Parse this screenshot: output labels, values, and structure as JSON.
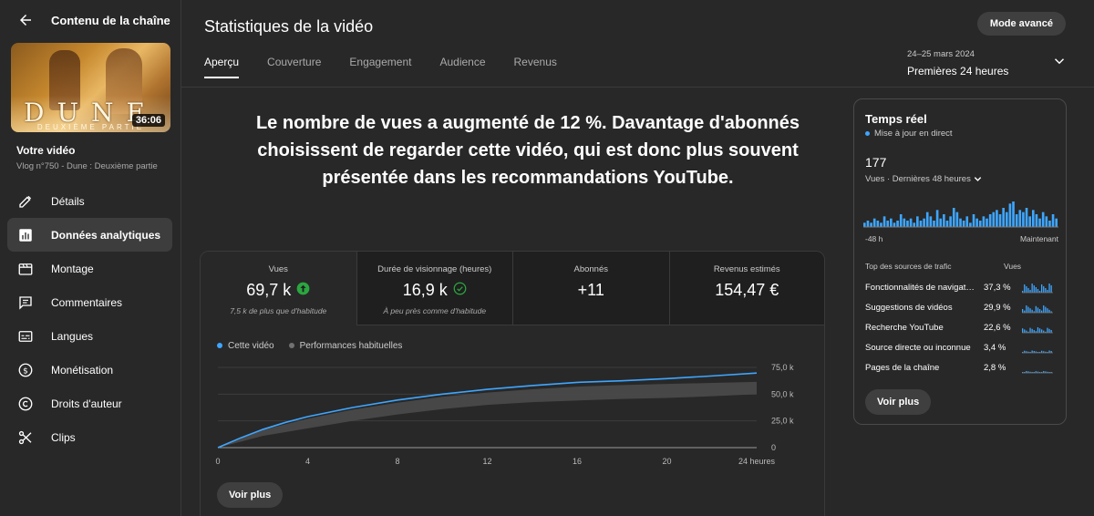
{
  "sidebar": {
    "title": "Contenu de la chaîne",
    "video_duration": "36:06",
    "thumbnail_text": {
      "title": "DUNE",
      "subtitle": "DEUXIÈME PARTIE"
    },
    "video_label": "Votre vidéo",
    "video_subtitle": "Vlog n°750 - Dune : Deuxième partie",
    "items": [
      {
        "label": "Détails",
        "icon": "pencil-icon",
        "active": false
      },
      {
        "label": "Données analytiques",
        "icon": "analytics-icon",
        "active": true
      },
      {
        "label": "Montage",
        "icon": "clapperboard-icon",
        "active": false
      },
      {
        "label": "Commentaires",
        "icon": "comment-icon",
        "active": false
      },
      {
        "label": "Langues",
        "icon": "subtitles-icon",
        "active": false
      },
      {
        "label": "Monétisation",
        "icon": "dollar-icon",
        "active": false
      },
      {
        "label": "Droits d'auteur",
        "icon": "copyright-icon",
        "active": false
      },
      {
        "label": "Clips",
        "icon": "scissors-icon",
        "active": false
      }
    ]
  },
  "header": {
    "title": "Statistiques de la vidéo",
    "advanced_button": "Mode avancé",
    "tabs": [
      "Aperçu",
      "Couverture",
      "Engagement",
      "Audience",
      "Revenus"
    ],
    "active_tab": 0,
    "period_dates": "24–25 mars 2024",
    "period_label": "Premières 24 heures"
  },
  "headline": "Le nombre de vues a augmenté de 12 %. Davantage d'abonnés choisissent de regarder cette vidéo, qui est donc plus souvent présentée dans les recommandations YouTube.",
  "metrics": [
    {
      "label": "Vues",
      "value": "69,7 k",
      "badge": "up-arrow-icon",
      "sub": "7,5 k de plus que d'habitude",
      "active": true
    },
    {
      "label": "Durée de visionnage (heures)",
      "value": "16,9 k",
      "badge": "check-circle-icon",
      "sub": "À peu près comme d'habitude",
      "active": false
    },
    {
      "label": "Abonnés",
      "value": "+11",
      "badge": "",
      "sub": "",
      "active": false
    },
    {
      "label": "Revenus estimés",
      "value": "154,47 €",
      "badge": "",
      "sub": "",
      "active": false
    }
  ],
  "chart_data": {
    "type": "line",
    "series": [
      {
        "name": "Cette vidéo",
        "color": "#3ea6ff",
        "x": [
          0,
          1,
          2,
          3,
          4,
          6,
          8,
          10,
          12,
          14,
          16,
          18,
          20,
          22,
          24
        ],
        "values": [
          0,
          9000,
          17000,
          23500,
          29000,
          37500,
          44500,
          50000,
          54500,
          58000,
          61000,
          62500,
          64500,
          67000,
          69700
        ]
      },
      {
        "name": "Performances habituelles",
        "color": "#717171",
        "type": "band",
        "x": [
          0,
          2,
          4,
          6,
          8,
          10,
          12,
          14,
          16,
          18,
          20,
          22,
          24
        ],
        "low": [
          0,
          11000,
          18000,
          25000,
          31000,
          36000,
          40000,
          42500,
          44000,
          45500,
          46500,
          48000,
          50000
        ],
        "high": [
          0,
          16500,
          27000,
          35500,
          42000,
          47500,
          51500,
          54500,
          57000,
          58500,
          59500,
          60500,
          61500
        ]
      }
    ],
    "xticks": [
      "0",
      "4",
      "8",
      "12",
      "16",
      "20",
      "24 heures"
    ],
    "xtick_values": [
      0,
      4,
      8,
      12,
      16,
      20,
      24
    ],
    "yticks": [
      "0",
      "25,0 k",
      "50,0 k",
      "75,0 k"
    ],
    "ytick_values": [
      0,
      25000,
      50000,
      75000
    ],
    "xlim": [
      0,
      24
    ],
    "ylim": [
      0,
      75000
    ],
    "grid": true
  },
  "chart_button": "Voir plus",
  "realtime": {
    "title": "Temps réel",
    "live_label": "Mise à jour en direct",
    "count": "177",
    "views_label": "Vues · Dernières 48 heures",
    "axis_left": "-48 h",
    "axis_right": "Maintenant",
    "bar_values": [
      2,
      3,
      2,
      4,
      3,
      2,
      5,
      3,
      4,
      2,
      3,
      6,
      4,
      3,
      4,
      2,
      5,
      3,
      4,
      7,
      5,
      3,
      8,
      4,
      6,
      3,
      5,
      9,
      7,
      4,
      3,
      5,
      2,
      6,
      4,
      3,
      5,
      4,
      6,
      7,
      8,
      6,
      9,
      7,
      11,
      12,
      6,
      8,
      7,
      9,
      5,
      8,
      6,
      4,
      7,
      5,
      3,
      6,
      4
    ],
    "table_header_source": "Top des sources de trafic",
    "table_header_views": "Vues",
    "sources": [
      {
        "name": "Fonctionnalités de navigat…",
        "pct": "37,3 %"
      },
      {
        "name": "Suggestions de vidéos",
        "pct": "29,9 %"
      },
      {
        "name": "Recherche YouTube",
        "pct": "22,6 %"
      },
      {
        "name": "Source directe ou inconnue",
        "pct": "3,4 %"
      },
      {
        "name": "Pages de la chaîne",
        "pct": "2,8 %"
      }
    ],
    "button": "Voir plus"
  },
  "colors": {
    "accent": "#3ea6ff",
    "success": "#2ba640",
    "background": "#282828",
    "panel": "#1f1f1f"
  }
}
